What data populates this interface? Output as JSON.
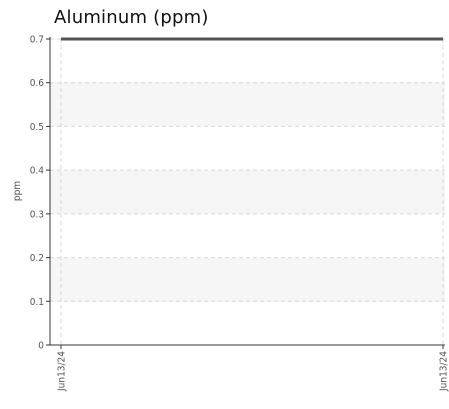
{
  "chart_data": {
    "type": "line",
    "title": "Aluminum (ppm)",
    "xlabel": "",
    "ylabel": "ppm",
    "x": [
      "Jun13/24",
      "Jun13/24"
    ],
    "series": [
      {
        "values": [
          0.7,
          0.7
        ],
        "color": "#555555"
      }
    ],
    "ylim": [
      0,
      0.7
    ],
    "yticks": [
      "0",
      "0.1",
      "0.2",
      "0.3",
      "0.4",
      "0.5",
      "0.6",
      "0.7"
    ],
    "xticks": [
      "Jun13/24",
      "Jun13/24"
    ],
    "grid": true,
    "band_color": "#f6f6f6",
    "grid_color": "#d8d8d8",
    "axis_color": "#333333"
  }
}
